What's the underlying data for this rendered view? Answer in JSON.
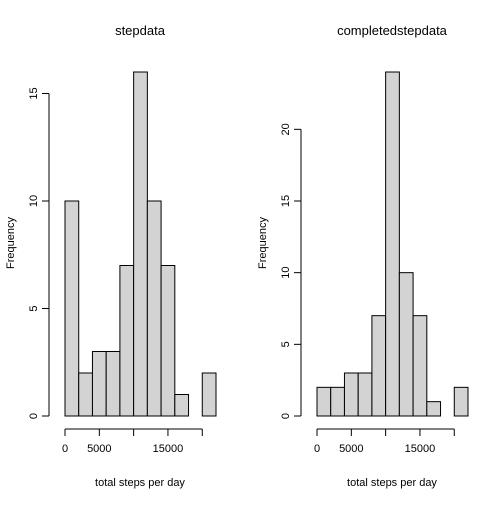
{
  "colors": {
    "bar_fill": "#d3d3d3",
    "bar_stroke": "#000000",
    "background": "#ffffff"
  },
  "chart_data": [
    {
      "type": "bar",
      "title": "stepdata",
      "xlabel": "total steps per day",
      "ylabel": "Frequency",
      "bin_edges": [
        0,
        2000,
        4000,
        6000,
        8000,
        10000,
        12000,
        14000,
        16000,
        18000,
        20000,
        22000
      ],
      "values": [
        10,
        2,
        3,
        3,
        7,
        16,
        10,
        7,
        1,
        0,
        2
      ],
      "xticks": [
        0,
        5000,
        10000,
        15000,
        20000
      ],
      "xtick_labels": [
        "0",
        "5000",
        "",
        "15000",
        ""
      ],
      "yticks": [
        0,
        5,
        10,
        15
      ],
      "ytick_labels": [
        "0",
        "5",
        "10",
        "15"
      ],
      "xlim": [
        0,
        22000
      ],
      "ylim": [
        0,
        16
      ]
    },
    {
      "type": "bar",
      "title": "completedstepdata",
      "xlabel": "total steps per day",
      "ylabel": "Frequency",
      "bin_edges": [
        0,
        2000,
        4000,
        6000,
        8000,
        10000,
        12000,
        14000,
        16000,
        18000,
        20000,
        22000
      ],
      "values": [
        2,
        2,
        3,
        3,
        7,
        24,
        10,
        7,
        1,
        0,
        2
      ],
      "xticks": [
        0,
        5000,
        10000,
        15000,
        20000
      ],
      "xtick_labels": [
        "0",
        "5000",
        "",
        "15000",
        ""
      ],
      "yticks": [
        0,
        5,
        10,
        15,
        20
      ],
      "ytick_labels": [
        "0",
        "5",
        "10",
        "15",
        "20"
      ],
      "xlim": [
        0,
        22000
      ],
      "ylim": [
        0,
        24
      ]
    }
  ]
}
